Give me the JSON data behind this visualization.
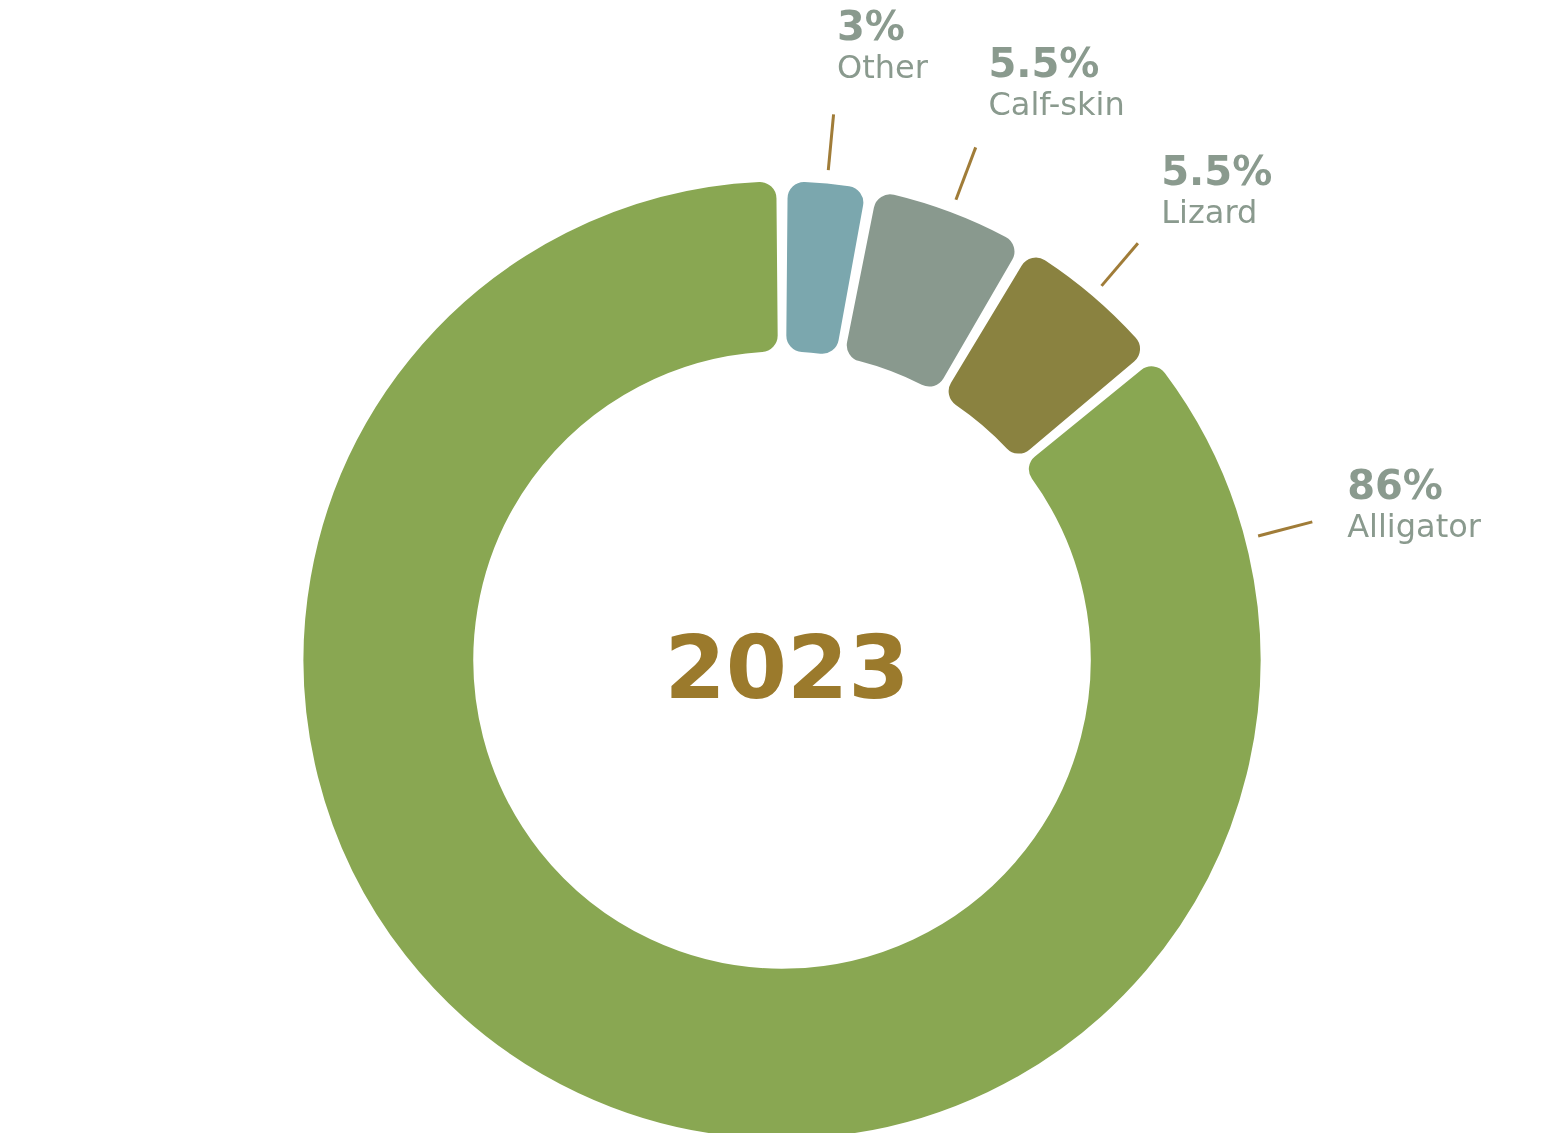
{
  "chart_data": {
    "type": "donut",
    "title": "2023",
    "categories": [
      "Other",
      "Calf-skin",
      "Lizard",
      "Alligator"
    ],
    "values": [
      3,
      5.5,
      5.5,
      86
    ],
    "value_labels": [
      "3%",
      "5.5%",
      "5.5%",
      "86%"
    ],
    "colors": [
      "#7ba7ae",
      "#89998e",
      "#8a8240",
      "#89a752"
    ],
    "legend": false
  }
}
